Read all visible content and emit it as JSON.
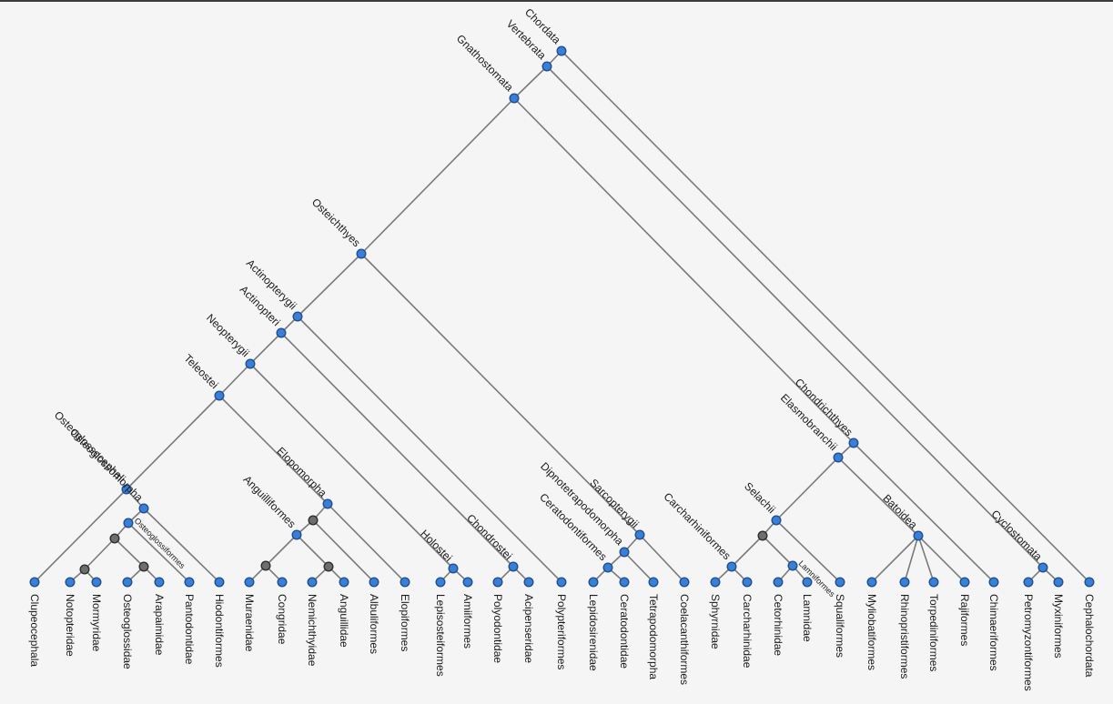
{
  "tree": {
    "leaves": [
      {
        "id": "clupeocephala",
        "label": "Clupeocephala"
      },
      {
        "id": "notopteridae",
        "label": "Notopteridae"
      },
      {
        "id": "mormyridae",
        "label": "Mormyridae"
      },
      {
        "id": "osteoglossidae",
        "label": "Osteoglossidae"
      },
      {
        "id": "arapaimidae",
        "label": "Arapaimidae"
      },
      {
        "id": "pantodontidae",
        "label": "Pantodontidae"
      },
      {
        "id": "hiodontiformes",
        "label": "Hiodontiformes"
      },
      {
        "id": "muraenidae",
        "label": "Muraenidae"
      },
      {
        "id": "congridae",
        "label": "Congridae"
      },
      {
        "id": "nemichthyidae",
        "label": "Nemichthyidae"
      },
      {
        "id": "anguillidae",
        "label": "Anguillidae"
      },
      {
        "id": "albuliformes",
        "label": "Albuliformes"
      },
      {
        "id": "elopiformes",
        "label": "Elopiformes"
      },
      {
        "id": "lepisosteiformes",
        "label": "Lepisosteiformes"
      },
      {
        "id": "amiiformes",
        "label": "Amiiformes"
      },
      {
        "id": "polyodontidae",
        "label": "Polyodontidae"
      },
      {
        "id": "acipenseridae",
        "label": "Acipenseridae"
      },
      {
        "id": "polypteriformes",
        "label": "Polypteriformes"
      },
      {
        "id": "lepidosirenidae",
        "label": "Lepidosirenidae"
      },
      {
        "id": "ceratodontidae",
        "label": "Ceratodontidae"
      },
      {
        "id": "tetrapodomorpha",
        "label": "Tetrapodomorpha"
      },
      {
        "id": "coelacanthiformes",
        "label": "Coelacanthiformes"
      },
      {
        "id": "sphyrnidae",
        "label": "Sphyrnidae"
      },
      {
        "id": "carcharhinidae",
        "label": "Carcharhinidae"
      },
      {
        "id": "cetorhinidae",
        "label": "Cetorhinidae"
      },
      {
        "id": "lamnidae",
        "label": "Lamnidae"
      },
      {
        "id": "squaliformes",
        "label": "Squaliformes"
      },
      {
        "id": "myliobatiformes",
        "label": "Myliobatiformes"
      },
      {
        "id": "rhinopristiformes",
        "label": "Rhinopristiformes"
      },
      {
        "id": "torpediniformes",
        "label": "Torpediniformes"
      },
      {
        "id": "rajiformes",
        "label": "Rajiformes"
      },
      {
        "id": "chimaeriformes",
        "label": "Chimaeriformes"
      },
      {
        "id": "petromyzontiformes",
        "label": "Petromyzontiformes"
      },
      {
        "id": "myxiniformes",
        "label": "Myxiniformes"
      },
      {
        "id": "cephalochordata",
        "label": "Cephalochordata"
      }
    ],
    "clades": [
      {
        "id": "chordata",
        "label": "Chordata"
      },
      {
        "id": "vertebrata",
        "label": "Vertebrata"
      },
      {
        "id": "gnathostomata",
        "label": "Gnathostomata"
      },
      {
        "id": "osteichthyes",
        "label": "Osteichthyes"
      },
      {
        "id": "actinopterygii",
        "label": "Actinopterygii"
      },
      {
        "id": "actinopteri",
        "label": "Actinopteri"
      },
      {
        "id": "neopterygii",
        "label": "Neopterygii"
      },
      {
        "id": "teleostei",
        "label": "Teleostei"
      },
      {
        "id": "osteoglossocephali",
        "label": "Osteoglossocephali"
      },
      {
        "id": "osteoglossomorpha",
        "label": "Osteoglossomorpha"
      },
      {
        "id": "osteoglossiformes",
        "label": "Osteoglossiformes"
      },
      {
        "id": "elopomorpha",
        "label": "Elopomorpha"
      },
      {
        "id": "anguilliformes",
        "label": "Anguilliformes"
      },
      {
        "id": "holostei",
        "label": "Holostei"
      },
      {
        "id": "chondrostei",
        "label": "Chondrostei"
      },
      {
        "id": "sarcopterygii",
        "label": "Sarcopterygii"
      },
      {
        "id": "dipnotetrapodomorpha",
        "label": "Dipnotetrapodomorpha"
      },
      {
        "id": "ceratodontiformes",
        "label": "Ceratodontiformes"
      },
      {
        "id": "chondrichthyes",
        "label": "Chondrichthyes"
      },
      {
        "id": "elasmobranchii",
        "label": "Elasmobranchii"
      },
      {
        "id": "selachii",
        "label": "Selachii"
      },
      {
        "id": "carcharhiniformes",
        "label": "Carcharhiniformes"
      },
      {
        "id": "lamniformes",
        "label": "Lamniformes"
      },
      {
        "id": "batoidea",
        "label": "Batoidea"
      },
      {
        "id": "cyclostomata",
        "label": "Cyclostomata"
      },
      {
        "id": "mormyridae_group",
        "label": ""
      },
      {
        "id": "osteoglossidae_group",
        "label": ""
      },
      {
        "id": "muraenidae_group",
        "label": ""
      },
      {
        "id": "nemichthyidae_group",
        "label": ""
      },
      {
        "id": "elopomorpha_inner",
        "label": ""
      },
      {
        "id": "osteoglossiformes_inner",
        "label": ""
      }
    ],
    "colors": {
      "node": "#3a7fd5",
      "node_unnamed": "#6e6e6e",
      "edge": "#7a7a7a"
    }
  }
}
